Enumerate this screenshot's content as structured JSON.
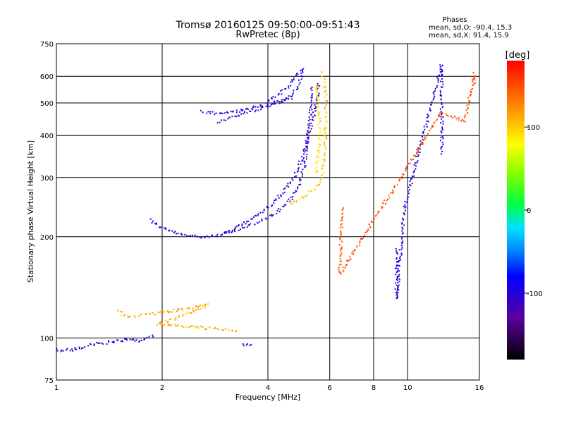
{
  "chart_data": {
    "type": "scatter",
    "title": "Tromsø 20160125 09:50:00-09:51:43",
    "subtitle": "RwPretec (8p)",
    "xlabel": "Frequency [MHz]",
    "ylabel": "Stationary phase Virtual Height [km]",
    "x_scale": "log",
    "y_scale": "log",
    "xlim": [
      1,
      16
    ],
    "ylim": [
      75,
      750
    ],
    "x_ticks": [
      1,
      2,
      4,
      6,
      8,
      10,
      16
    ],
    "x_tick_labels": [
      "1",
      "2",
      "4",
      "6",
      "8",
      "10",
      "16"
    ],
    "y_ticks": [
      75,
      100,
      200,
      300,
      400,
      500,
      600,
      750
    ],
    "y_tick_labels": [
      "75",
      "100",
      "200",
      "300",
      "400",
      "500",
      "600",
      "750"
    ],
    "grid": true,
    "phase_stats": {
      "title": "Phases",
      "o_line": "mean, sd,O: -90.4, 15.3",
      "x_line": "mean, sd,X:  91.4, 15.9"
    },
    "colorbar": {
      "label": "[deg]",
      "min": -180,
      "max": 180,
      "ticks": [
        100,
        0,
        -100
      ],
      "tick_labels": [
        "100",
        "0",
        "-100"
      ]
    },
    "traces": [
      {
        "phase": -100,
        "points": [
          [
            1.85,
            225
          ],
          [
            1.95,
            215
          ],
          [
            2.1,
            208
          ],
          [
            2.3,
            202
          ],
          [
            2.6,
            200
          ],
          [
            2.9,
            202
          ],
          [
            3.2,
            210
          ],
          [
            3.5,
            222
          ],
          [
            3.8,
            235
          ],
          [
            4.1,
            250
          ],
          [
            4.4,
            270
          ],
          [
            4.7,
            295
          ],
          [
            5.0,
            340
          ],
          [
            5.3,
            420
          ],
          [
            5.5,
            500
          ],
          [
            5.6,
            580
          ]
        ]
      },
      {
        "phase": -110,
        "points": [
          [
            3.0,
            205
          ],
          [
            3.4,
            212
          ],
          [
            3.8,
            222
          ],
          [
            4.2,
            235
          ],
          [
            4.6,
            255
          ],
          [
            4.9,
            285
          ],
          [
            5.1,
            330
          ],
          [
            5.2,
            400
          ],
          [
            5.3,
            480
          ],
          [
            5.35,
            560
          ]
        ]
      },
      {
        "phase": -90,
        "points": [
          [
            2.6,
            470
          ],
          [
            2.9,
            465
          ],
          [
            3.2,
            470
          ],
          [
            3.5,
            480
          ],
          [
            3.8,
            490
          ],
          [
            4.1,
            500
          ],
          [
            4.4,
            510
          ],
          [
            4.7,
            530
          ],
          [
            4.9,
            560
          ],
          [
            5.0,
            610
          ],
          [
            5.05,
            640
          ]
        ]
      },
      {
        "phase": -105,
        "points": [
          [
            2.9,
            440
          ],
          [
            3.2,
            455
          ],
          [
            3.5,
            470
          ],
          [
            3.8,
            480
          ],
          [
            4.1,
            495
          ],
          [
            4.4,
            505
          ],
          [
            4.7,
            520
          ]
        ]
      },
      {
        "phase": -95,
        "points": [
          [
            4.0,
            510
          ],
          [
            4.3,
            530
          ],
          [
            4.6,
            560
          ],
          [
            4.8,
            600
          ],
          [
            5.0,
            630
          ]
        ]
      },
      {
        "phase": -100,
        "points": [
          [
            1.0,
            92
          ],
          [
            1.1,
            92
          ],
          [
            1.2,
            94
          ],
          [
            1.3,
            96
          ],
          [
            1.4,
            97
          ],
          [
            1.5,
            98
          ],
          [
            1.6,
            99
          ],
          [
            1.7,
            98
          ],
          [
            1.8,
            100
          ],
          [
            1.9,
            102
          ]
        ]
      },
      {
        "phase": -110,
        "points": [
          [
            3.4,
            95
          ],
          [
            3.5,
            96
          ],
          [
            3.6,
            95
          ]
        ]
      },
      {
        "phase": 100,
        "points": [
          [
            4.6,
            250
          ],
          [
            4.9,
            258
          ],
          [
            5.2,
            268
          ],
          [
            5.5,
            282
          ],
          [
            5.7,
            300
          ],
          [
            5.8,
            350
          ],
          [
            5.85,
            420
          ],
          [
            5.85,
            500
          ],
          [
            5.8,
            580
          ],
          [
            5.7,
            620
          ]
        ]
      },
      {
        "phase": 90,
        "points": [
          [
            5.5,
            310
          ],
          [
            5.6,
            380
          ],
          [
            5.6,
            450
          ],
          [
            5.55,
            520
          ],
          [
            5.5,
            570
          ]
        ]
      },
      {
        "phase": -100,
        "points": [
          [
            9.3,
            185
          ],
          [
            9.3,
            130
          ],
          [
            9.8,
            245
          ],
          [
            12.5,
            650
          ],
          [
            12.5,
            350
          ]
        ]
      },
      {
        "phase": 150,
        "points": [
          [
            6.5,
            245
          ],
          [
            6.4,
            155
          ],
          [
            12.5,
            470
          ],
          [
            14.5,
            440
          ],
          [
            15.5,
            610
          ],
          [
            15.4,
            570
          ]
        ]
      },
      {
        "phase": 110,
        "points": [
          [
            1.5,
            120
          ],
          [
            1.6,
            115
          ],
          [
            2.7,
            125
          ],
          [
            2.2,
            115
          ],
          [
            1.95,
            110
          ],
          [
            3.3,
            105
          ]
        ]
      }
    ]
  }
}
